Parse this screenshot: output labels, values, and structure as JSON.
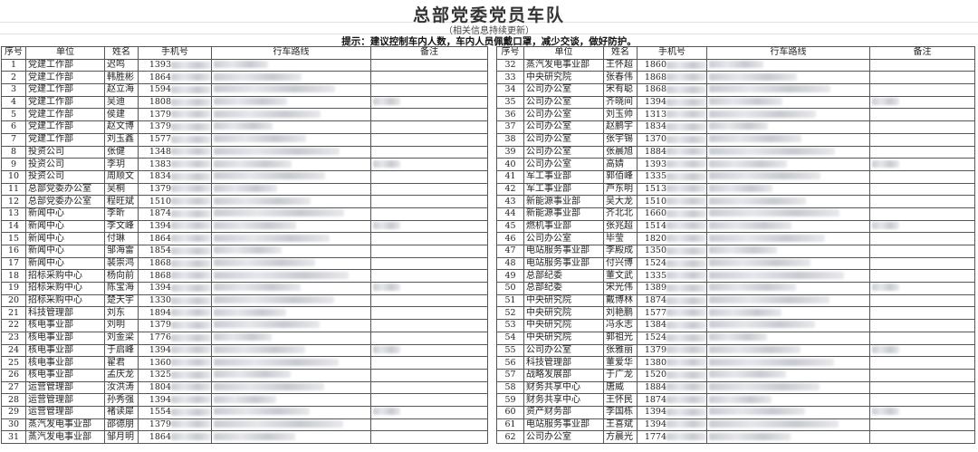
{
  "title": "总部党委党员车队",
  "subtitle": "（相关信息持续更新）",
  "hint": "提示：建议控制车内人数，车内人员佩戴口罩，减少交谈，做好防护。",
  "columns": [
    "序号",
    "单位",
    "姓名",
    "手机号",
    "行车路线",
    "备注"
  ],
  "left_rows": [
    [
      "1",
      "党建工作部",
      "迟鸣",
      "1393"
    ],
    [
      "2",
      "党建工作部",
      "韩胜彬",
      "1864"
    ],
    [
      "3",
      "党建工作部",
      "赵立海",
      "1594"
    ],
    [
      "4",
      "党建工作部",
      "吴迪",
      "1808"
    ],
    [
      "5",
      "党建工作部",
      "侯建",
      "1379"
    ],
    [
      "6",
      "党建工作部",
      "赵文博",
      "1379"
    ],
    [
      "7",
      "党建工作部",
      "刘玉鑫",
      "1577"
    ],
    [
      "8",
      "投资公司",
      "张健",
      "1348"
    ],
    [
      "9",
      "投资公司",
      "李玥",
      "1383"
    ],
    [
      "10",
      "投资公司",
      "周顺文",
      "1834"
    ],
    [
      "11",
      "总部党委办公室",
      "吴桐",
      "1379"
    ],
    [
      "12",
      "总部党委办公室",
      "程旺斌",
      "1510"
    ],
    [
      "13",
      "新闻中心",
      "李昕",
      "1874"
    ],
    [
      "14",
      "新闻中心",
      "李文峰",
      "1394"
    ],
    [
      "15",
      "新闻中心",
      "付琳",
      "1864"
    ],
    [
      "16",
      "新闻中心",
      "邹海雷",
      "1854"
    ],
    [
      "17",
      "新闻中心",
      "裴崇鸿",
      "1868"
    ],
    [
      "18",
      "招标采购中心",
      "杨向前",
      "1868"
    ],
    [
      "19",
      "招标采购中心",
      "陈宝海",
      "1394"
    ],
    [
      "20",
      "招标采购中心",
      "楚天宇",
      "1330"
    ],
    [
      "21",
      "科技管理部",
      "刘东",
      "1894"
    ],
    [
      "22",
      "核电事业部",
      "刘明",
      "1379"
    ],
    [
      "23",
      "核电事业部",
      "刘金梁",
      "1776"
    ],
    [
      "24",
      "核电事业部",
      "于启峰",
      "1394"
    ],
    [
      "25",
      "核电事业部",
      "翟君",
      "1360"
    ],
    [
      "26",
      "核电事业部",
      "孟庆龙",
      "1325"
    ],
    [
      "27",
      "运营管理部",
      "汝洪涛",
      "1804"
    ],
    [
      "28",
      "运营管理部",
      "孙秀强",
      "1394"
    ],
    [
      "29",
      "运营管理部",
      "褚读犀",
      "1554"
    ],
    [
      "30",
      "蒸汽发电事业部",
      "邵德朋",
      "1379"
    ],
    [
      "31",
      "蒸汽发电事业部",
      "邹月明",
      "1864"
    ]
  ],
  "right_rows": [
    [
      "32",
      "蒸汽发电事业部",
      "王怀超",
      "1860"
    ],
    [
      "33",
      "中央研究院",
      "张春伟",
      "1868"
    ],
    [
      "34",
      "公司办公室",
      "宋有聪",
      "1868"
    ],
    [
      "35",
      "公司办公室",
      "齐晓间",
      "1394"
    ],
    [
      "36",
      "公司办公室",
      "刘玉帅",
      "1313"
    ],
    [
      "37",
      "公司办公室",
      "赵鹏宇",
      "1834"
    ],
    [
      "38",
      "公司办公室",
      "张宇锡",
      "1370"
    ],
    [
      "39",
      "公司办公室",
      "张晨旭",
      "1884"
    ],
    [
      "40",
      "公司办公室",
      "高婧",
      "1393"
    ],
    [
      "41",
      "军工事业部",
      "郭佰峰",
      "1335"
    ],
    [
      "42",
      "军工事业部",
      "芦东明",
      "1513"
    ],
    [
      "43",
      "新能源事业部",
      "吴大龙",
      "1510"
    ],
    [
      "44",
      "新能源事业部",
      "齐北北",
      "1660"
    ],
    [
      "45",
      "燃机事业部",
      "张兆超",
      "1514"
    ],
    [
      "46",
      "公司办公室",
      "毕莹",
      "1820"
    ],
    [
      "47",
      "电站服务事业部",
      "李殿成",
      "1350"
    ],
    [
      "48",
      "电站服务事业部",
      "付兴博",
      "1524"
    ],
    [
      "49",
      "总部纪委",
      "董文武",
      "1335"
    ],
    [
      "50",
      "总部纪委",
      "宋光伟",
      "1389"
    ],
    [
      "51",
      "中央研究院",
      "戴博林",
      "1874"
    ],
    [
      "52",
      "中央研究院",
      "刘艳鹏",
      "1577"
    ],
    [
      "53",
      "中央研究院",
      "冯永志",
      "1384"
    ],
    [
      "54",
      "中央研究院",
      "郭祖光",
      "1524"
    ],
    [
      "55",
      "公司办公室",
      "张雅丽",
      "1379"
    ],
    [
      "56",
      "科技管理部",
      "董爱华",
      "1380"
    ],
    [
      "57",
      "战略发展部",
      "于广龙",
      "1520"
    ],
    [
      "58",
      "财务共享中心",
      "唐威",
      "1884"
    ],
    [
      "59",
      "财务共享中心",
      "王怀民",
      "1874"
    ],
    [
      "60",
      "资产财务部",
      "李国栋",
      "1394"
    ],
    [
      "61",
      "电站服务事业部",
      "王喜斌",
      "1394"
    ],
    [
      "62",
      "公司办公室",
      "方晨光",
      "1774"
    ]
  ]
}
